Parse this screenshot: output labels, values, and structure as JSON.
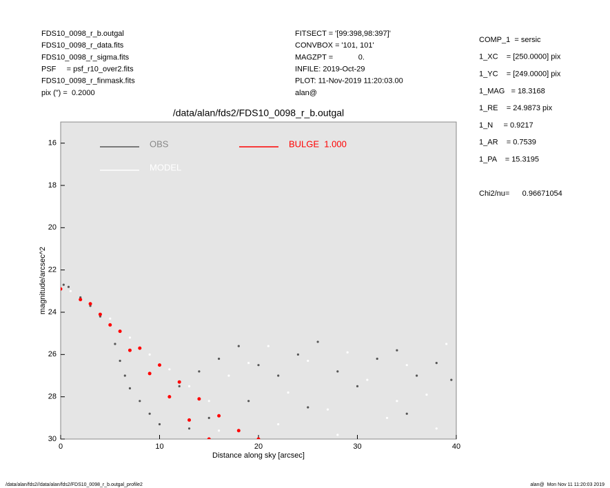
{
  "header": {
    "left": [
      "FDS10_0098_r_b.outgal",
      "FDS10_0098_r_data.fits",
      "FDS10_0098_r_sigma.fits",
      "PSF     = psf_r10_over2.fits",
      "FDS10_0098_r_finmask.fits",
      "pix (\") =  0.2000"
    ],
    "middle": [
      "FITSECT = '[99:398,98:397]'",
      "CONVBOX = '101, 101'",
      "MAGZPT =            0.",
      "INFILE: 2019-Oct-29",
      "PLOT: 11-Nov-2019 11:20:03.00",
      "alan@"
    ],
    "right": [
      "COMP_1  = sersic",
      "1_XC    = [250.0000] pix",
      "1_YC    = [249.0000] pix",
      "1_MAG   = 18.3168",
      "1_RE    = 24.9873 pix",
      "1_N     = 0.9217",
      "1_AR    = 0.7539",
      "1_PA    = 15.3195"
    ],
    "chi2": "Chi2/nu=      0.96671054"
  },
  "chart_data": {
    "type": "scatter",
    "title": "/data/alan/fds2/FDS10_0098_r_b.outgal",
    "xlabel": "Distance along sky [arcsec]",
    "ylabel": "magnitude/arcsec^2",
    "xlim": [
      0,
      40
    ],
    "xticks": [
      0,
      10,
      20,
      30,
      40
    ],
    "ylim": [
      15,
      30
    ],
    "yticks": [
      16,
      18,
      20,
      22,
      24,
      26,
      28,
      30
    ],
    "y_inverted": true,
    "series": [
      {
        "name": "OBS",
        "color": "#555555",
        "x": [
          0.3,
          0.8,
          2,
          3,
          4,
          5,
          5.5,
          6,
          6.5,
          7,
          8,
          9,
          10,
          12,
          14,
          16,
          18,
          20,
          22,
          24,
          26,
          28,
          30,
          32,
          34,
          36,
          38,
          39.5,
          15,
          25,
          35,
          11,
          13,
          19
        ],
        "values": [
          22.7,
          22.8,
          23.3,
          23.7,
          24.2,
          24.6,
          25.5,
          26.3,
          27,
          27.6,
          28.2,
          28.8,
          29.3,
          27.5,
          26.8,
          26.2,
          25.6,
          26.5,
          27,
          26,
          25.4,
          26.8,
          27.5,
          26.2,
          25.8,
          27,
          26.4,
          27.2,
          29,
          28.5,
          28.8,
          28,
          29.5,
          28.2
        ]
      },
      {
        "name": "MODEL",
        "color": "#ffffff",
        "x": [
          1,
          3,
          5,
          7,
          9,
          11,
          13,
          15,
          17,
          19,
          21,
          23,
          25,
          27,
          29,
          31,
          33,
          35,
          37,
          39,
          16,
          22,
          28,
          34,
          38
        ],
        "values": [
          23,
          23.6,
          24.3,
          25.2,
          26,
          26.7,
          27.5,
          28.2,
          27,
          26.4,
          25.6,
          27.8,
          26.3,
          28.6,
          25.9,
          27.2,
          29,
          26.5,
          27.9,
          25.5,
          29.6,
          29.3,
          29.8,
          28.2,
          29.5
        ]
      },
      {
        "name": "BULGE  1.000",
        "color": "#ff0000",
        "x": [
          0,
          2,
          4,
          6,
          8,
          10,
          12,
          14,
          16,
          18,
          20,
          3,
          5,
          7,
          9,
          11,
          13,
          15
        ],
        "values": [
          22.9,
          23.4,
          24.1,
          24.9,
          25.7,
          26.5,
          27.3,
          28.1,
          28.9,
          29.6,
          30,
          23.6,
          24.6,
          25.8,
          26.9,
          28,
          29.1,
          30
        ]
      }
    ]
  },
  "footer": {
    "left": "/data/alan/fds2//data/alan/fds2/FDS10_0098_r_b.outgal_profile2",
    "right": "alan@  Mon Nov 11 11:20:03 2019"
  }
}
